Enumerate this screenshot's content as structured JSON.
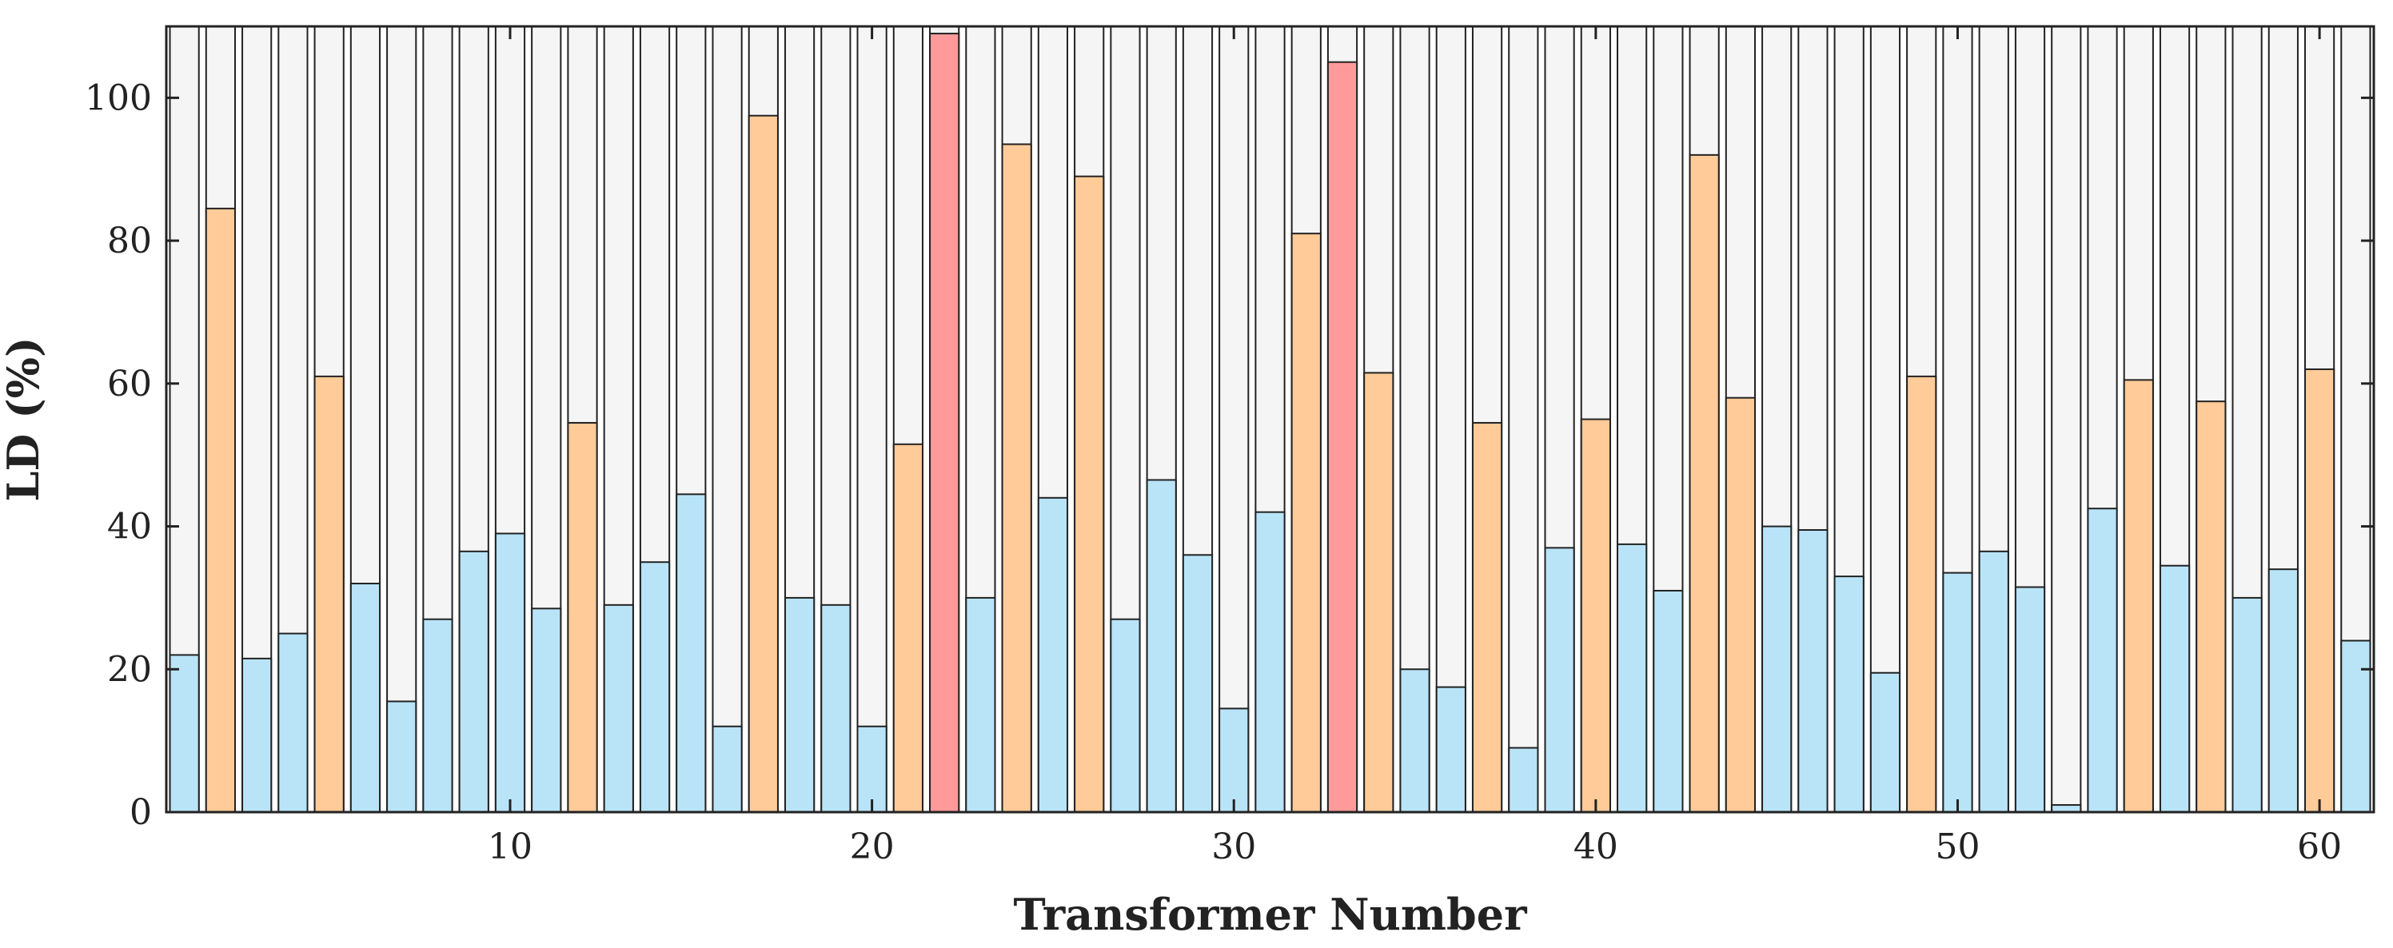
{
  "chart_data": {
    "type": "bar",
    "title": "",
    "xlabel": "Transformer Number",
    "ylabel": "LD (%)",
    "xlim": [
      0.5,
      61.5
    ],
    "ylim": [
      0,
      110
    ],
    "x_ticks": [
      10,
      20,
      30,
      40,
      50,
      60
    ],
    "y_ticks": [
      0,
      20,
      40,
      60,
      80,
      100
    ],
    "background_bar_value": 110,
    "grid": false,
    "colors": {
      "low": "#b9e4f8",
      "medium": "#ffcb99",
      "high": "#ff9a9a",
      "background_bar": "#f5f5f5",
      "edge": "#222222"
    },
    "thresholds": {
      "medium_at_or_above": 50,
      "high_above": 100
    },
    "x": [
      1,
      2,
      3,
      4,
      5,
      6,
      7,
      8,
      9,
      10,
      11,
      12,
      13,
      14,
      15,
      16,
      17,
      18,
      19,
      20,
      21,
      22,
      23,
      24,
      25,
      26,
      27,
      28,
      29,
      30,
      31,
      32,
      33,
      34,
      35,
      36,
      37,
      38,
      39,
      40,
      41,
      42,
      43,
      44,
      45,
      46,
      47,
      48,
      49,
      50,
      51,
      52,
      53,
      54,
      55,
      56,
      57,
      58,
      59,
      60,
      61
    ],
    "values": [
      22,
      84.5,
      21.5,
      25,
      61,
      32,
      15.5,
      27,
      36.5,
      39,
      28.5,
      54.5,
      29,
      35,
      44.5,
      12,
      97.5,
      30,
      29,
      12,
      51.5,
      109,
      30,
      93.5,
      44,
      89,
      27,
      46.5,
      36,
      14.5,
      42,
      81,
      105,
      61.5,
      20,
      17.5,
      54.5,
      9,
      37,
      55,
      37.5,
      31,
      92,
      58,
      40,
      39.5,
      33,
      19.5,
      61,
      33.5,
      36.5,
      31.5,
      1,
      42.5,
      60.5,
      34.5,
      57.5,
      30,
      34,
      62,
      24
    ]
  }
}
